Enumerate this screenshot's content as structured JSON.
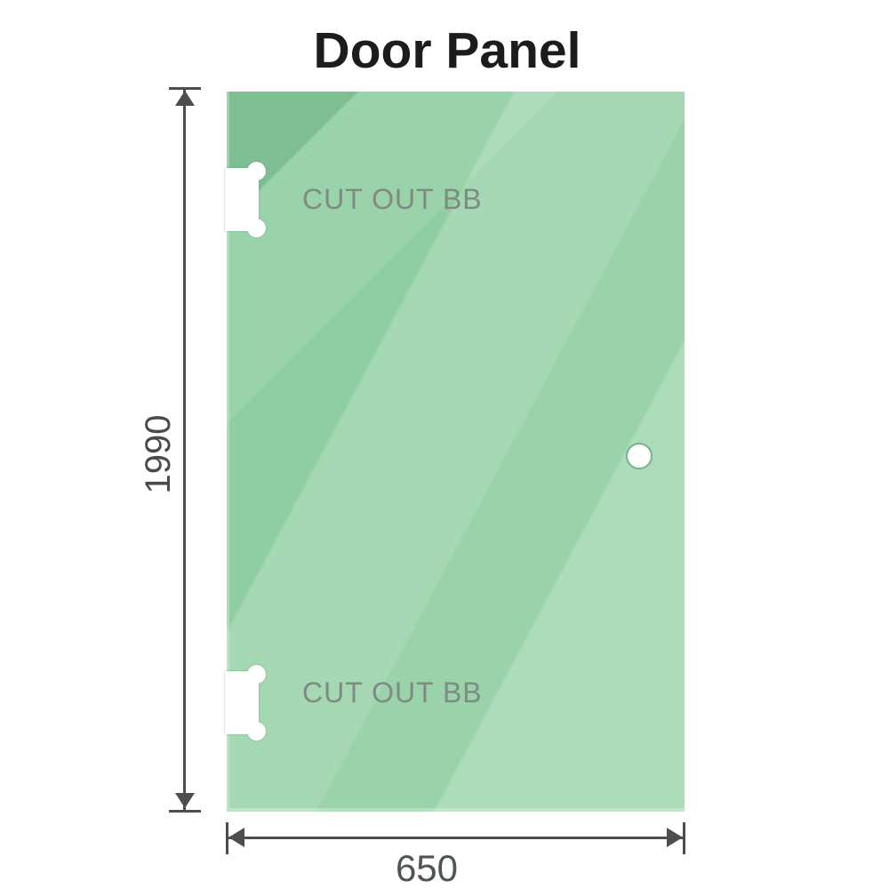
{
  "title": "Door Panel",
  "glass_panel": {
    "description": "green glass door panel with diagonal reflection streaks",
    "color": "#8ccd9e",
    "highlight_color": "#aedfc0",
    "cutouts": [
      {
        "label": "CUT OUT BB",
        "position": "top-left-edge"
      },
      {
        "label": "CUT OUT BB",
        "position": "bottom-left-edge"
      }
    ],
    "handle_hole": {
      "position": "right-middle"
    }
  },
  "dimensions": {
    "height": {
      "value": "1990",
      "orientation": "vertical",
      "side": "left"
    },
    "width": {
      "value": "650",
      "orientation": "horizontal",
      "side": "bottom"
    },
    "line_color": "#4d4d4d"
  }
}
